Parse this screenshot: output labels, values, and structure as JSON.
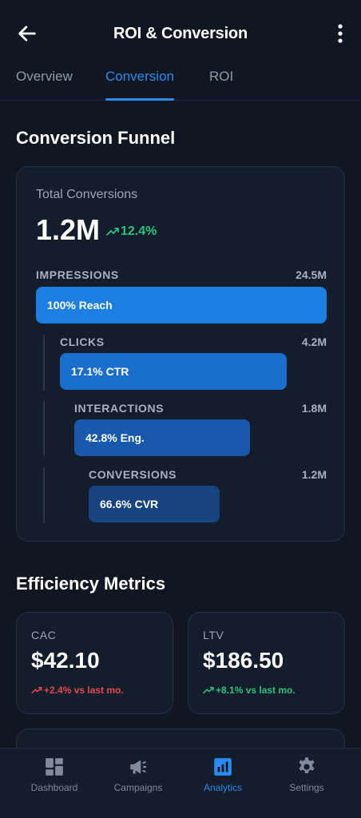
{
  "header": {
    "title": "ROI & Conversion",
    "back_icon": "arrow-left-icon",
    "more_icon": "more-vertical-icon"
  },
  "tabs": [
    {
      "label": "Overview",
      "active": false
    },
    {
      "label": "Conversion",
      "active": true
    },
    {
      "label": "ROI",
      "active": false
    }
  ],
  "funnel": {
    "section_title": "Conversion Funnel",
    "total_label": "Total Conversions",
    "total_value": "1.2M",
    "total_change": "12.4%",
    "stages": [
      {
        "label": "IMPRESSIONS",
        "value": "24.5M",
        "bar_text": "100% Reach",
        "color": "#1e7fe3"
      },
      {
        "label": "CLICKS",
        "value": "4.2M",
        "bar_text": "17.1% CTR",
        "color": "#1a6fcc"
      },
      {
        "label": "INTERACTIONS",
        "value": "1.8M",
        "bar_text": "42.8% Eng.",
        "color": "#1859ab"
      },
      {
        "label": "CONVERSIONS",
        "value": "1.2M",
        "bar_text": "66.6% CVR",
        "color": "#17437f"
      }
    ]
  },
  "efficiency": {
    "section_title": "Efficiency Metrics",
    "metrics": [
      {
        "label": "CAC",
        "value": "$42.10",
        "change": "+2.4% vs last mo.",
        "change_color": "#e5484d"
      },
      {
        "label": "LTV",
        "value": "$186.50",
        "change": "+8.1% vs last mo.",
        "change_color": "#2ec27e"
      }
    ]
  },
  "bottom_nav": [
    {
      "label": "Dashboard",
      "icon": "dashboard-icon",
      "active": false
    },
    {
      "label": "Campaigns",
      "icon": "megaphone-icon",
      "active": false
    },
    {
      "label": "Analytics",
      "icon": "analytics-icon",
      "active": true
    },
    {
      "label": "Settings",
      "icon": "gear-icon",
      "active": false
    }
  ],
  "colors": {
    "accent": "#2b8cf0",
    "positive": "#2ec27e",
    "negative": "#e5484d",
    "background": "#101722"
  }
}
